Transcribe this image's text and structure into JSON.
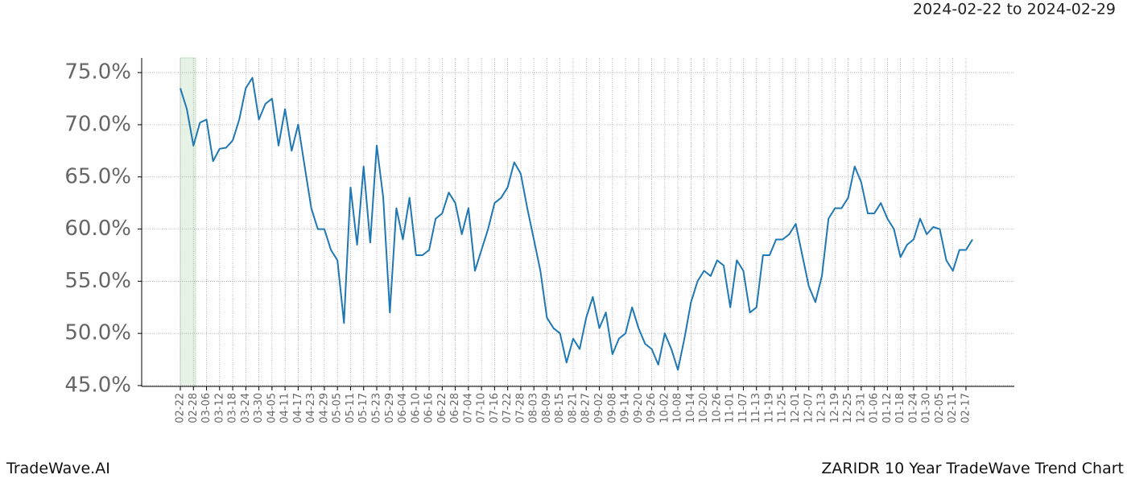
{
  "chart_data": {
    "type": "line",
    "subtitle": "2024-02-22 to 2024-02-29",
    "footer_left": "TradeWave.AI",
    "footer_right": "ZARIDR 10 Year TradeWave Trend Chart",
    "categories": [
      "02-22",
      null,
      "02-28",
      null,
      "03-06",
      null,
      "03-12",
      null,
      "03-18",
      null,
      "03-24",
      null,
      "03-30",
      null,
      "04-05",
      null,
      "04-11",
      null,
      "04-17",
      null,
      "04-23",
      null,
      "04-29",
      null,
      "05-05",
      null,
      "05-11",
      null,
      "05-17",
      null,
      "05-23",
      null,
      "05-29",
      null,
      "06-04",
      null,
      "06-10",
      null,
      "06-16",
      null,
      "06-22",
      null,
      "06-28",
      null,
      "07-04",
      null,
      "07-10",
      null,
      "07-16",
      null,
      "07-22",
      null,
      "07-28",
      null,
      "08-03",
      null,
      "08-09",
      null,
      "08-15",
      null,
      "08-21",
      null,
      "08-27",
      null,
      "09-02",
      null,
      "09-08",
      null,
      "09-14",
      null,
      "09-20",
      null,
      "09-26",
      null,
      "10-02",
      null,
      "10-08",
      null,
      "10-14",
      null,
      "10-20",
      null,
      "10-26",
      null,
      "11-01",
      null,
      "11-07",
      null,
      "11-13",
      null,
      "11-19",
      null,
      "11-25",
      null,
      "12-01",
      null,
      "12-07",
      null,
      "12-13",
      null,
      "12-19",
      null,
      "12-25",
      null,
      "12-31",
      null,
      "01-06",
      null,
      "01-12",
      null,
      "01-18",
      null,
      "01-24",
      null,
      "01-30",
      null,
      "02-05",
      null,
      "02-11",
      null,
      "02-17",
      null
    ],
    "values": [
      73.5,
      71.5,
      68,
      70.2,
      70.5,
      66.5,
      67.7,
      67.8,
      68.5,
      70.5,
      73.5,
      74.5,
      70.5,
      72,
      72.5,
      68,
      71.5,
      67.5,
      70,
      66,
      62,
      60,
      60,
      58,
      57,
      51,
      64,
      58.5,
      66,
      58.7,
      68,
      63,
      52,
      62,
      59,
      63,
      57.5,
      57.5,
      58,
      61,
      61.5,
      63.5,
      62.5,
      59.5,
      62,
      56,
      58,
      60,
      62.5,
      63,
      64,
      66.4,
      65.3,
      62,
      59,
      56,
      51.5,
      50.5,
      50,
      47.2,
      49.5,
      48.5,
      51.5,
      53.5,
      50.5,
      52,
      48,
      49.5,
      50,
      52.5,
      50.5,
      49,
      48.5,
      47,
      50,
      48.5,
      46.5,
      49.5,
      53,
      55,
      56,
      55.5,
      57,
      56.5,
      52.5,
      57,
      56,
      52,
      52.5,
      57.5,
      57.5,
      59,
      59,
      59.5,
      60.5,
      57.5,
      54.5,
      53,
      55.5,
      61,
      62,
      62,
      63,
      66,
      64.5,
      61.5,
      61.5,
      62.5,
      61,
      60,
      57.3,
      58.5,
      59,
      61,
      59.5,
      60.2,
      60,
      57,
      56,
      58,
      58,
      59
    ],
    "color": "#1f77b4",
    "ylim": [
      44.92,
      76.4
    ],
    "yticks": [
      {
        "value": 45,
        "label": "45.0%"
      },
      {
        "value": 50,
        "label": "50.0%"
      },
      {
        "value": 55,
        "label": "55.0%"
      },
      {
        "value": 60,
        "label": "60.0%"
      },
      {
        "value": 65,
        "label": "65.0%"
      },
      {
        "value": 70,
        "label": "70.0%"
      },
      {
        "value": 75,
        "label": "75.0%"
      }
    ],
    "grid": true
  }
}
